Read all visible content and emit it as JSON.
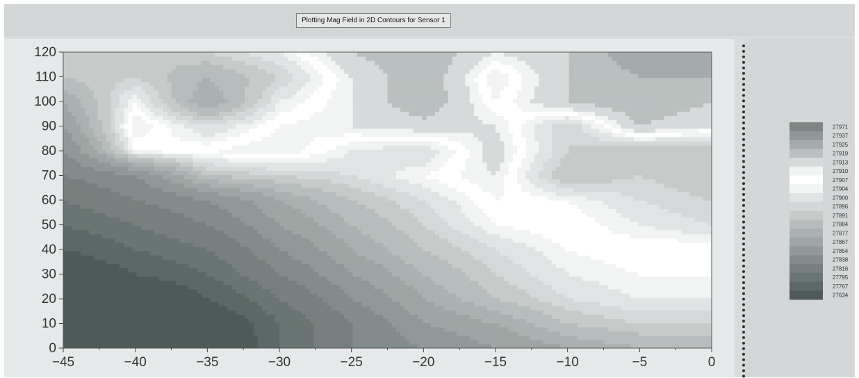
{
  "window": {
    "title": "Plotting Mag Field in 2D Contours for Sensor 1"
  },
  "chart_data": {
    "type": "heatmap",
    "title": "Plotting Mag Field in 2D Contours for Sensor 1",
    "xlabel": "",
    "ylabel": "",
    "xlim": [
      -45,
      0
    ],
    "ylim": [
      0,
      120
    ],
    "x_ticks": [
      -45,
      -40,
      -35,
      -30,
      -25,
      -20,
      -15,
      -10,
      -5,
      0
    ],
    "y_ticks": [
      0,
      10,
      20,
      30,
      40,
      50,
      60,
      70,
      80,
      90,
      100,
      110,
      120
    ],
    "grid": false,
    "legend_position": "right",
    "contour_levels": [
      27971,
      27937,
      27925,
      27919,
      27913,
      27910,
      27907,
      27904,
      27900,
      27896,
      27891,
      27884,
      27877,
      27867,
      27854,
      27838,
      27816,
      27795,
      27767,
      27634
    ],
    "level_colors": [
      "#7d8684",
      "#8f9896",
      "#a4abaa",
      "#bac0bf",
      "#d6dada",
      "#f2f4f4",
      "#ffffff",
      "#f2f4f4",
      "#e1e4e4",
      "#d4d8d8",
      "#c6cbca",
      "#b7bdbc",
      "#aab1b0",
      "#9ea6a5",
      "#909998",
      "#838c8b",
      "#77807e",
      "#6a7472",
      "#5d6866",
      "#4f5a58"
    ],
    "x": [
      -45,
      -40,
      -35,
      -30,
      -25,
      -20,
      -15,
      -10,
      -5,
      0
    ],
    "y": [
      0,
      10,
      20,
      30,
      40,
      50,
      60,
      70,
      80,
      90,
      100,
      110,
      120
    ],
    "z": [
      [
        27634,
        27650,
        27700,
        27795,
        27838,
        27854,
        27867,
        27877,
        27884,
        27884
      ],
      [
        27650,
        27660,
        27720,
        27795,
        27838,
        27867,
        27877,
        27891,
        27896,
        27896
      ],
      [
        27680,
        27700,
        27767,
        27816,
        27854,
        27877,
        27891,
        27900,
        27904,
        27904
      ],
      [
        27720,
        27767,
        27795,
        27838,
        27867,
        27884,
        27896,
        27904,
        27907,
        27907
      ],
      [
        27767,
        27795,
        27816,
        27854,
        27877,
        27891,
        27900,
        27907,
        27910,
        27910
      ],
      [
        27795,
        27816,
        27838,
        27867,
        27884,
        27896,
        27907,
        27910,
        27904,
        27900
      ],
      [
        27816,
        27838,
        27854,
        27877,
        27891,
        27900,
        27910,
        27907,
        27900,
        27896
      ],
      [
        27838,
        27854,
        27891,
        27896,
        27900,
        27907,
        27913,
        27891,
        27896,
        27891
      ],
      [
        27854,
        27907,
        27910,
        27913,
        27904,
        27900,
        27916,
        27896,
        27891,
        27891
      ],
      [
        27867,
        27913,
        27900,
        27910,
        27913,
        27916,
        27913,
        27896,
        27919,
        27913
      ],
      [
        27877,
        27907,
        27877,
        27904,
        27913,
        27925,
        27907,
        27919,
        27925,
        27919
      ],
      [
        27891,
        27896,
        27884,
        27896,
        27913,
        27925,
        27904,
        27919,
        27925,
        27925
      ],
      [
        27896,
        27891,
        27896,
        27904,
        27919,
        27925,
        27913,
        27919,
        27930,
        27937
      ]
    ]
  }
}
